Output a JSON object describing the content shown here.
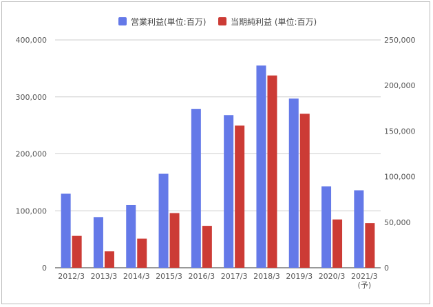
{
  "chart_data": {
    "type": "bar",
    "categories": [
      "2012/3",
      "2013/3",
      "2014/3",
      "2015/3",
      "2016/3",
      "2017/3",
      "2018/3",
      "2019/3",
      "2020/3",
      "2021/3"
    ],
    "category_notes": [
      "",
      "",
      "",
      "",
      "",
      "",
      "",
      "",
      "",
      "(予)"
    ],
    "series": [
      {
        "name": "営業利益(単位:百万)",
        "axis": "left",
        "color": "#6479e8",
        "values": [
          130000,
          89000,
          110000,
          165000,
          279000,
          268000,
          355000,
          297000,
          143000,
          136000
        ]
      },
      {
        "name": "当期純利益 (単位:百万)",
        "axis": "right",
        "color": "#cc3b35",
        "values": [
          35000,
          18000,
          32000,
          60000,
          46000,
          156000,
          211000,
          169000,
          53000,
          49000
        ]
      }
    ],
    "y_left": {
      "min": 0,
      "max": 400000,
      "ticks": [
        0,
        100000,
        200000,
        300000,
        400000
      ]
    },
    "y_right": {
      "min": 0,
      "max": 250000,
      "ticks": [
        0,
        50000,
        100000,
        150000,
        200000,
        250000
      ]
    },
    "grid": true,
    "legend_position": "top-center",
    "title": "",
    "xlabel": "",
    "ylabel": ""
  }
}
